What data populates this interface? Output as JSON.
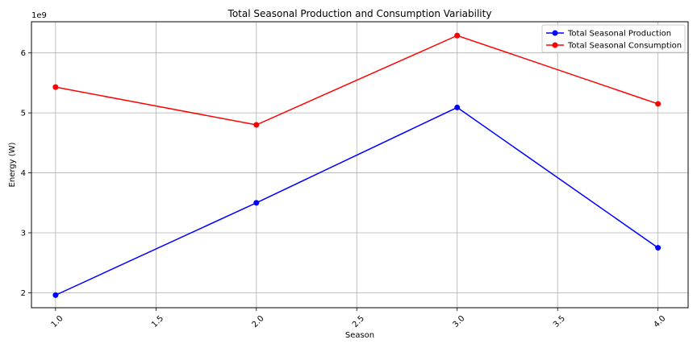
{
  "chart_data": {
    "type": "line",
    "title": "Total Seasonal Production and Consumption Variability",
    "xlabel": "Season",
    "ylabel": "Energy (W)",
    "y_offset_label": "1e9",
    "y_scale": 1000000000,
    "xlim": [
      0.88,
      4.15
    ],
    "ylim": [
      1750000000,
      6520000000
    ],
    "x_ticks": [
      1.0,
      1.5,
      2.0,
      2.5,
      3.0,
      3.5,
      4.0
    ],
    "x_tick_labels": [
      "1.0",
      "1.5",
      "2.0",
      "2.5",
      "3.0",
      "3.5",
      "4.0"
    ],
    "y_ticks": [
      2000000000,
      3000000000,
      4000000000,
      5000000000,
      6000000000
    ],
    "y_tick_labels": [
      "2",
      "3",
      "4",
      "5",
      "6"
    ],
    "grid": true,
    "legend_position": "top-right",
    "series": [
      {
        "name": "Total Seasonal Production",
        "color": "#0000ff",
        "x": [
          1,
          2,
          3,
          4
        ],
        "y": [
          1960000000,
          3500000000,
          5090000000,
          2750000000
        ]
      },
      {
        "name": "Total Seasonal Consumption",
        "color": "#ff0000",
        "x": [
          1,
          2,
          3,
          4
        ],
        "y": [
          5430000000,
          4800000000,
          6290000000,
          5150000000
        ]
      }
    ]
  }
}
